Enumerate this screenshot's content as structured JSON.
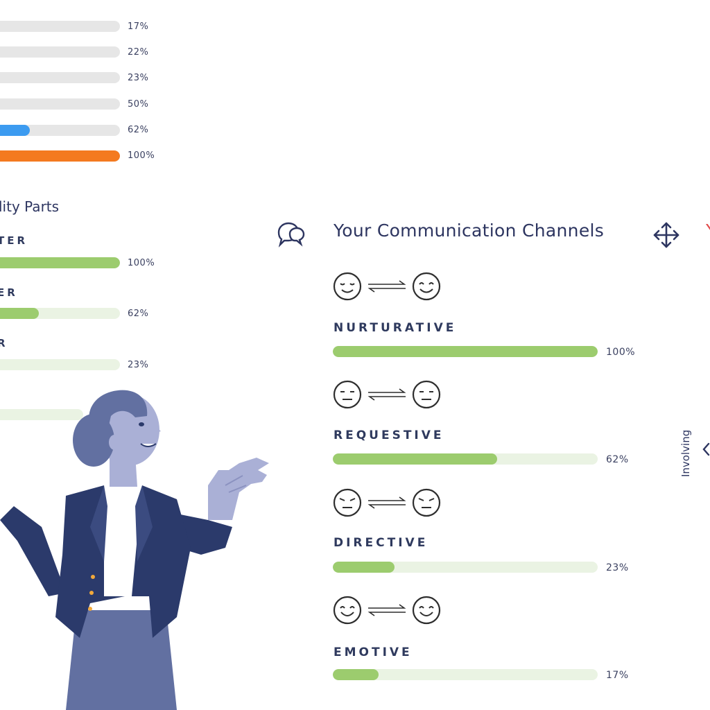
{
  "top_bars": [
    {
      "percent": 17,
      "label": "17%",
      "color": "#e4e4e4"
    },
    {
      "percent": 22,
      "label": "22%",
      "color": "#e4e4e4"
    },
    {
      "percent": 23,
      "label": "23%",
      "color": "#e4e4e4"
    },
    {
      "percent": 50,
      "label": "50%",
      "color": "#e4e4e4"
    },
    {
      "percent": 62,
      "label": "62%",
      "color": "#3c9bf0"
    },
    {
      "percent": 100,
      "label": "100%",
      "color": "#f47a1f"
    }
  ],
  "parts": {
    "title": "lity Parts",
    "items": [
      {
        "label": "TER",
        "percent": 100,
        "percent_label": "100%"
      },
      {
        "label": "ER",
        "percent": 62,
        "percent_label": "62%"
      },
      {
        "label": "R",
        "percent": 23,
        "percent_label": "23%"
      },
      {
        "label": "",
        "percent": 17,
        "percent_label": ""
      }
    ],
    "fill_color": "#9ccc6e",
    "track_color": "#eaf3e3"
  },
  "channels": {
    "icon": "chat-bubbles-icon",
    "title": "Your Communication Channels",
    "move_icon": "move-arrows-icon",
    "items": [
      {
        "label": "NURTURATIVE",
        "percent": 100,
        "percent_label": "100%",
        "face_left": "content-face-icon",
        "face_right": "smiling-face-icon"
      },
      {
        "label": "REQUESTIVE",
        "percent": 62,
        "percent_label": "62%",
        "face_left": "neutral-face-icon",
        "face_right": "neutral-face-icon"
      },
      {
        "label": "DIRECTIVE",
        "percent": 23,
        "percent_label": "23%",
        "face_left": "serious-face-icon",
        "face_right": "serious-face-icon"
      },
      {
        "label": "EMOTIVE",
        "percent": 17,
        "percent_label": "17%",
        "face_left": "happy-face-icon",
        "face_right": "happy-face-icon"
      }
    ],
    "fill_color": "#9ccc6e",
    "track_color": "#eaf3e3"
  },
  "right_edge": {
    "vertical_label": "Involving",
    "partial_letter": "Y"
  },
  "illustration": {
    "icon": "presenter-woman-illustration"
  }
}
